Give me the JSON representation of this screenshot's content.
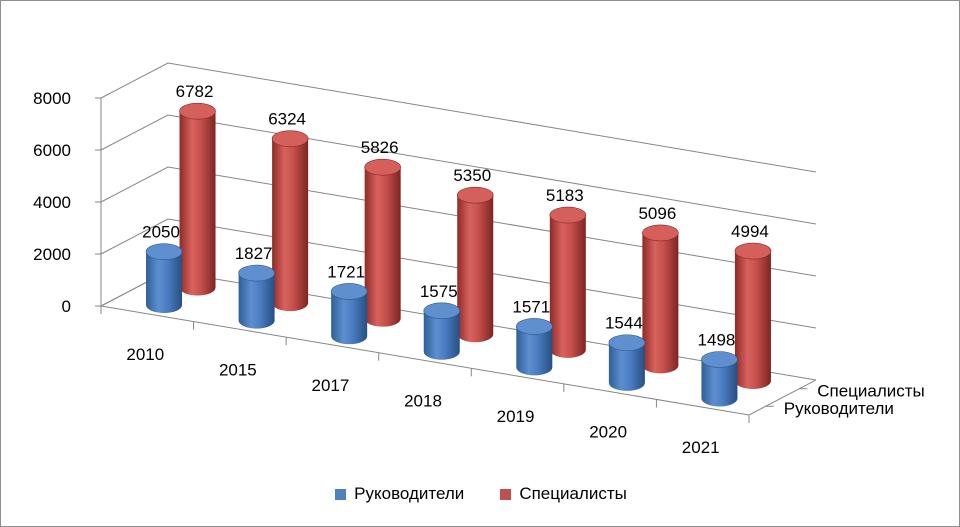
{
  "chart_data": {
    "type": "bar",
    "subtype": "3d-cylinder",
    "categories": [
      "2010",
      "2015",
      "2017",
      "2018",
      "2019",
      "2020",
      "2021"
    ],
    "series": [
      {
        "name": "Руководители",
        "color": "#4F81BD",
        "values": [
          2050,
          1827,
          1721,
          1575,
          1571,
          1544,
          1498
        ]
      },
      {
        "name": "Специалисты",
        "color": "#C0504D",
        "values": [
          6782,
          6324,
          5826,
          5350,
          5183,
          5096,
          4994
        ]
      }
    ],
    "y_ticks": [
      "0",
      "2000",
      "4000",
      "6000",
      "8000"
    ],
    "ylim": [
      0,
      8000
    ],
    "grid": true,
    "legend": "bottom",
    "data_labels": true
  }
}
